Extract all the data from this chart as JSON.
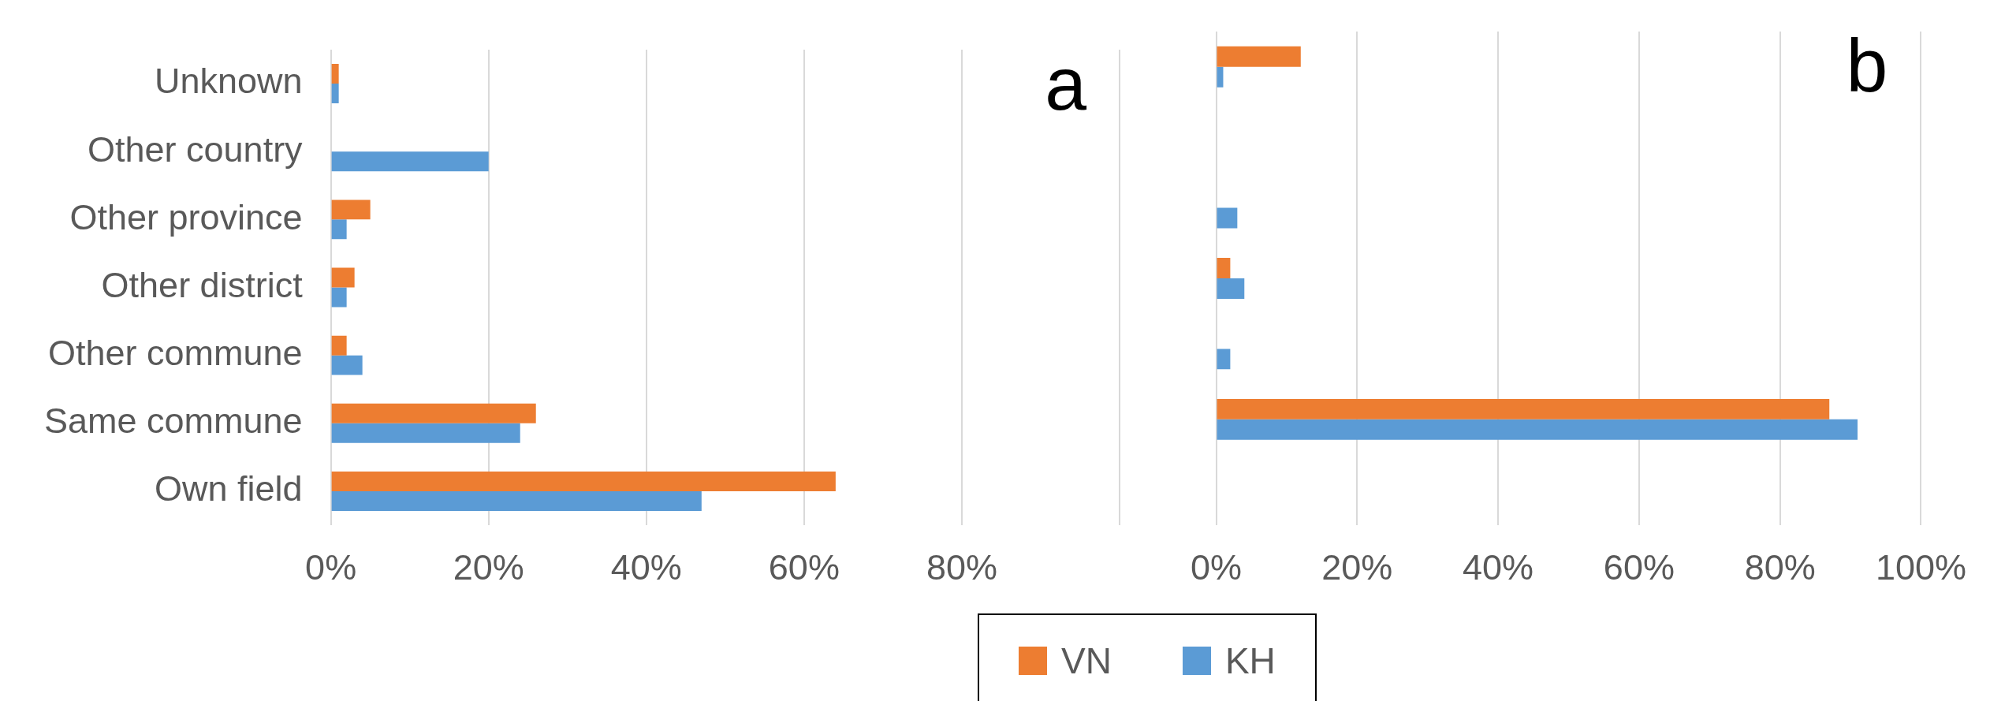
{
  "chart_data": [
    {
      "type": "bar",
      "orientation": "horizontal",
      "annotations": [
        "a"
      ],
      "categories": [
        "Unknown",
        "Other country",
        "Other province",
        "Other district",
        "Other commune",
        "Same commune",
        "Own field"
      ],
      "series": [
        {
          "name": "VN",
          "color": "#ed7d31",
          "values": [
            1,
            null,
            5,
            3,
            2,
            26,
            64
          ]
        },
        {
          "name": "KH",
          "color": "#5b9bd5",
          "values": [
            1,
            20,
            2,
            2,
            4,
            24,
            47
          ]
        }
      ],
      "xlim": [
        0,
        100
      ],
      "xticks": [
        {
          "value": 0,
          "label": "0%"
        },
        {
          "value": 20,
          "label": "20%"
        },
        {
          "value": 40,
          "label": "40%"
        },
        {
          "value": 60,
          "label": "60%"
        },
        {
          "value": 80,
          "label": "80%"
        },
        {
          "value": 100,
          "label": null
        }
      ],
      "grid": "x",
      "legend": "bottom"
    },
    {
      "type": "bar",
      "orientation": "horizontal",
      "annotations": [
        "b"
      ],
      "categories": [
        null,
        null,
        null,
        null,
        null,
        null,
        null
      ],
      "series": [
        {
          "color": "#ed7d31",
          "values": [
            12,
            null,
            null,
            2,
            null,
            87,
            null
          ]
        },
        {
          "color": "#5b9bd5",
          "values": [
            1,
            null,
            3,
            4,
            2,
            91,
            null
          ]
        }
      ],
      "xlim": [
        0,
        100
      ],
      "xticks": [
        {
          "value": 0,
          "label": "0%"
        },
        {
          "value": 20,
          "label": "20%"
        },
        {
          "value": 40,
          "label": "40%"
        },
        {
          "value": 60,
          "label": "60%"
        },
        {
          "value": 80,
          "label": "80%"
        },
        {
          "value": 100,
          "label": "100%"
        }
      ],
      "grid": "x",
      "tick_labels": "x"
    }
  ]
}
